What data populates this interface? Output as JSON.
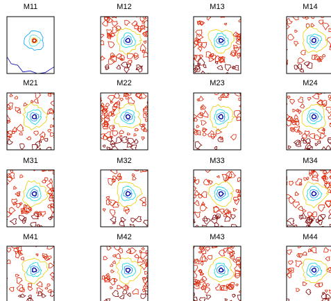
{
  "panels": [
    {
      "title": "M11"
    },
    {
      "title": "M12"
    },
    {
      "title": "M13"
    },
    {
      "title": "M14"
    },
    {
      "title": "M21"
    },
    {
      "title": "M22"
    },
    {
      "title": "M23"
    },
    {
      "title": "M24"
    },
    {
      "title": "M31"
    },
    {
      "title": "M32"
    },
    {
      "title": "M33"
    },
    {
      "title": "M34"
    },
    {
      "title": "M41"
    },
    {
      "title": "M42"
    },
    {
      "title": "M43"
    },
    {
      "title": "M44"
    }
  ]
}
